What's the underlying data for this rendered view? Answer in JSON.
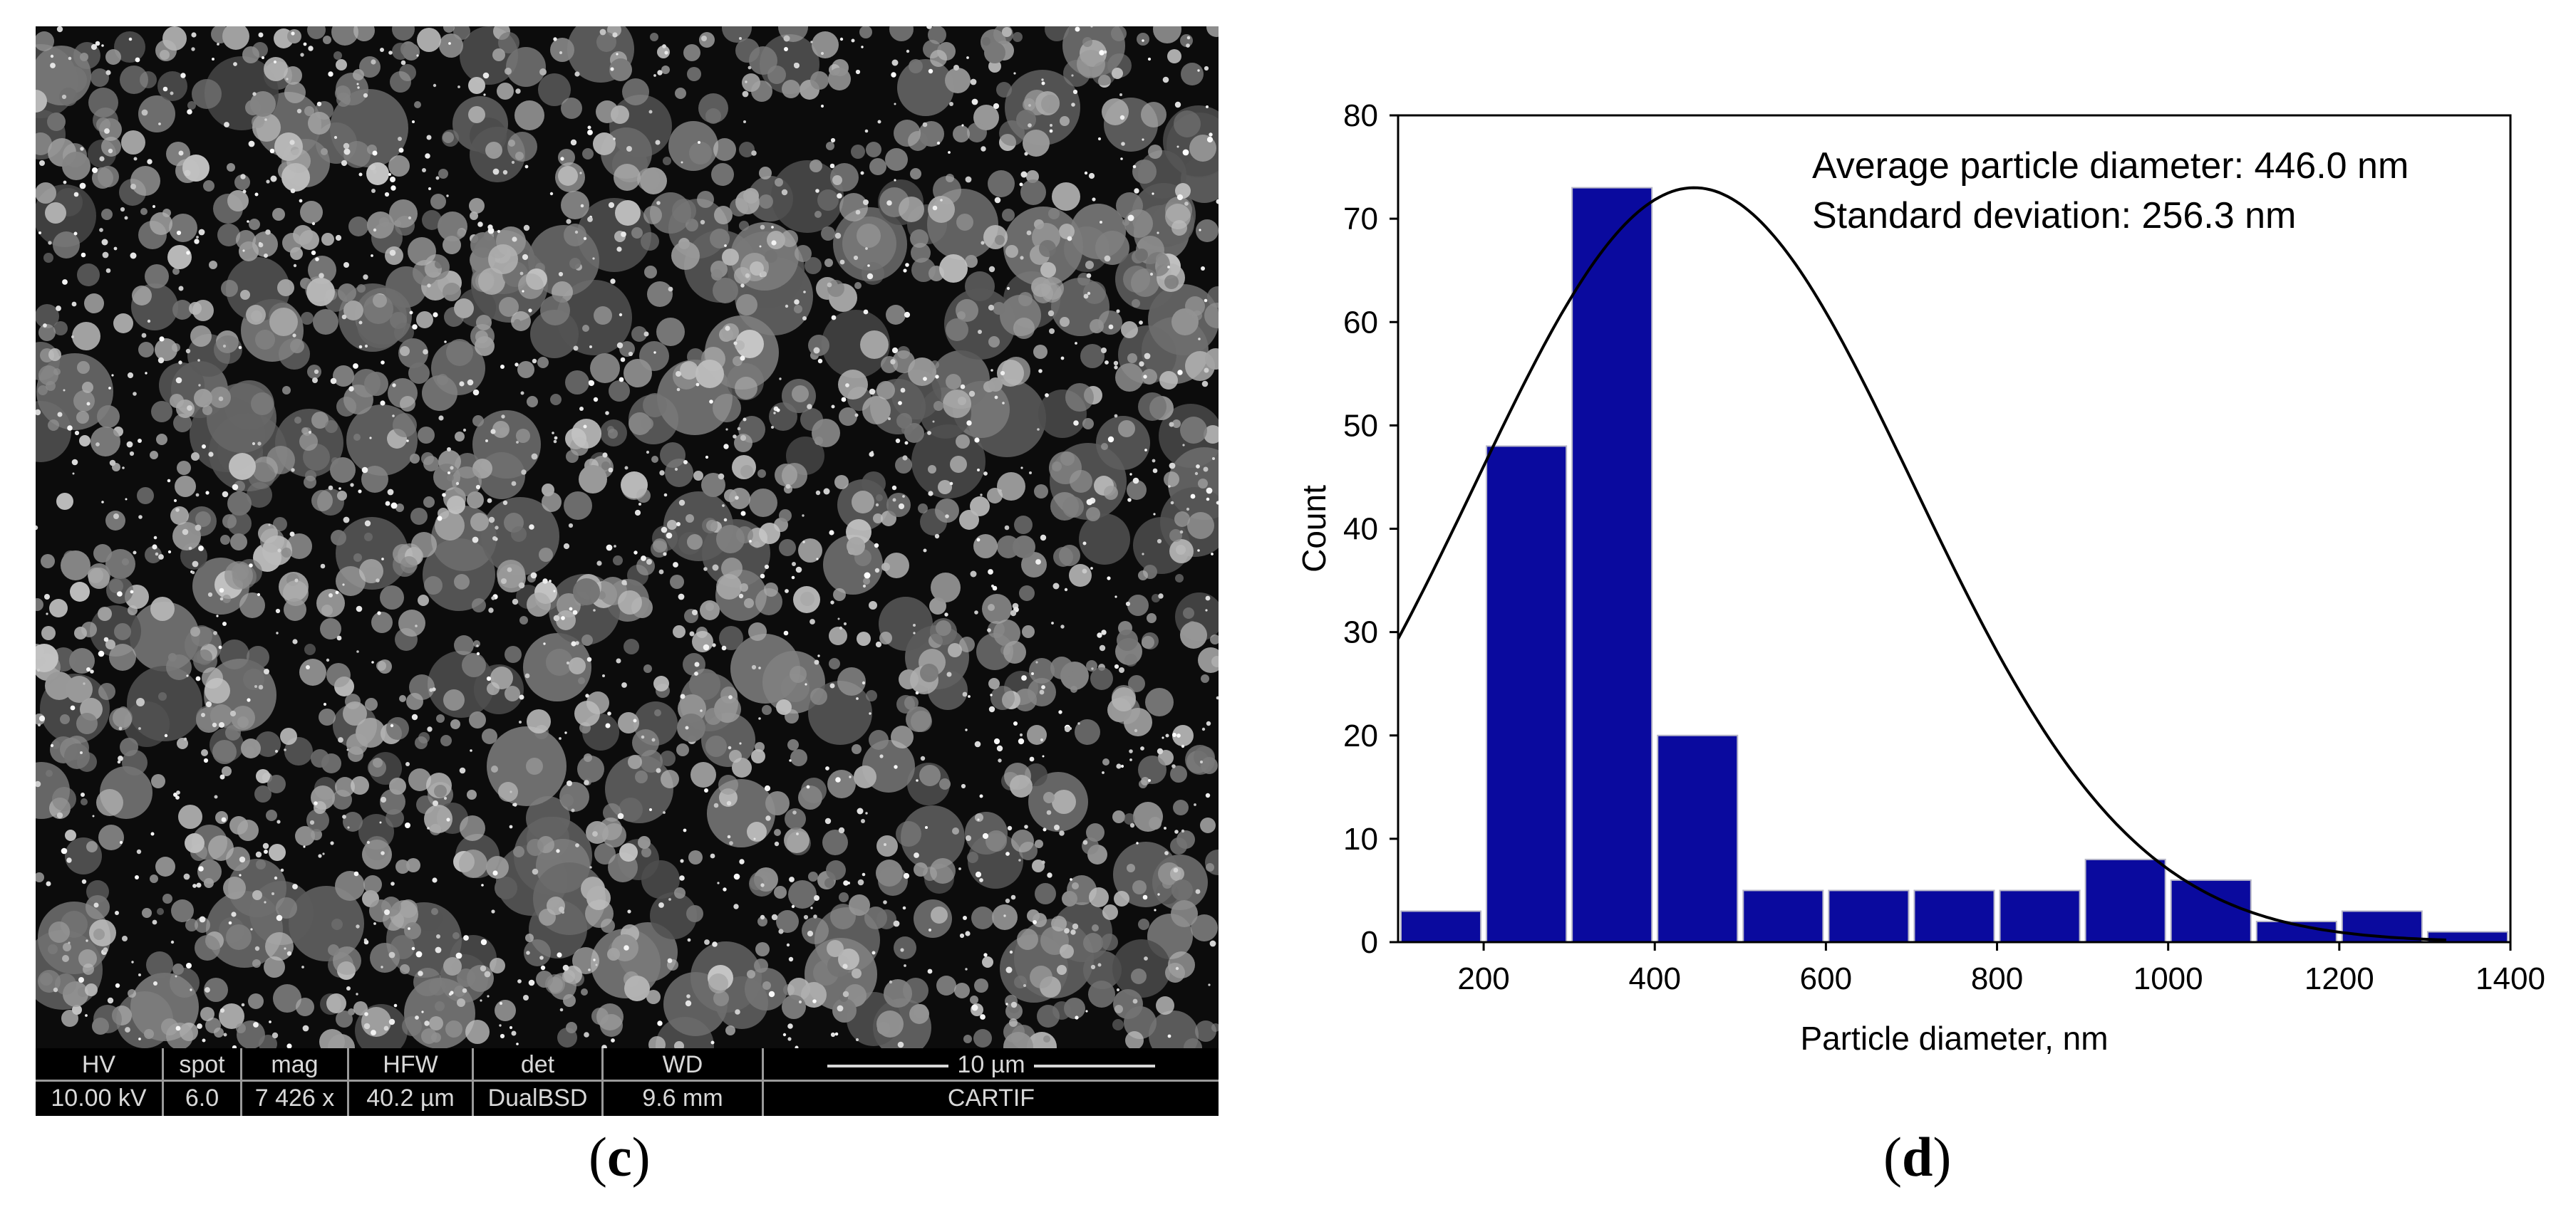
{
  "panels": {
    "left_label": "c",
    "right_label": "d"
  },
  "sem": {
    "databar": {
      "columns": [
        {
          "label": "HV",
          "value": "10.00 kV"
        },
        {
          "label": "spot",
          "value": "6.0"
        },
        {
          "label": "mag",
          "value": "7 426 x"
        },
        {
          "label": "HFW",
          "value": "40.2 µm"
        },
        {
          "label": "det",
          "value": "DualBSD"
        },
        {
          "label": "WD",
          "value": "9.6 mm"
        }
      ],
      "scale_label": "10 µm",
      "lab_name": "CARTIF"
    }
  },
  "chart_data": {
    "type": "bar",
    "title": "",
    "xlabel": "Particle diameter, nm",
    "ylabel": "Count",
    "xlim": [
      100,
      1400
    ],
    "ylim": [
      0,
      80
    ],
    "xticks": [
      200,
      400,
      600,
      800,
      1000,
      1200,
      1400
    ],
    "yticks": [
      0,
      10,
      20,
      30,
      40,
      50,
      60,
      70,
      80
    ],
    "bin_width": 100,
    "bins": [
      {
        "x0": 100,
        "x1": 200,
        "count": 3
      },
      {
        "x0": 200,
        "x1": 300,
        "count": 48
      },
      {
        "x0": 300,
        "x1": 400,
        "count": 73
      },
      {
        "x0": 400,
        "x1": 500,
        "count": 20
      },
      {
        "x0": 500,
        "x1": 600,
        "count": 5
      },
      {
        "x0": 600,
        "x1": 700,
        "count": 5
      },
      {
        "x0": 700,
        "x1": 800,
        "count": 5
      },
      {
        "x0": 800,
        "x1": 900,
        "count": 5
      },
      {
        "x0": 900,
        "x1": 1000,
        "count": 8
      },
      {
        "x0": 1000,
        "x1": 1100,
        "count": 6
      },
      {
        "x0": 1100,
        "x1": 1200,
        "count": 2
      },
      {
        "x0": 1200,
        "x1": 1300,
        "count": 3
      },
      {
        "x0": 1300,
        "x1": 1400,
        "count": 1
      }
    ],
    "fit_curve": {
      "type": "normal",
      "mean": 446.0,
      "std": 256.3,
      "peak": 73
    },
    "annotations": [
      "Average particle diameter: 446.0 nm",
      "Standard deviation: 256.3 nm"
    ],
    "colors": {
      "bar": "#0a0a9e",
      "bar_edge": "#b8b8c8",
      "curve": "#000000"
    },
    "grid": false
  }
}
